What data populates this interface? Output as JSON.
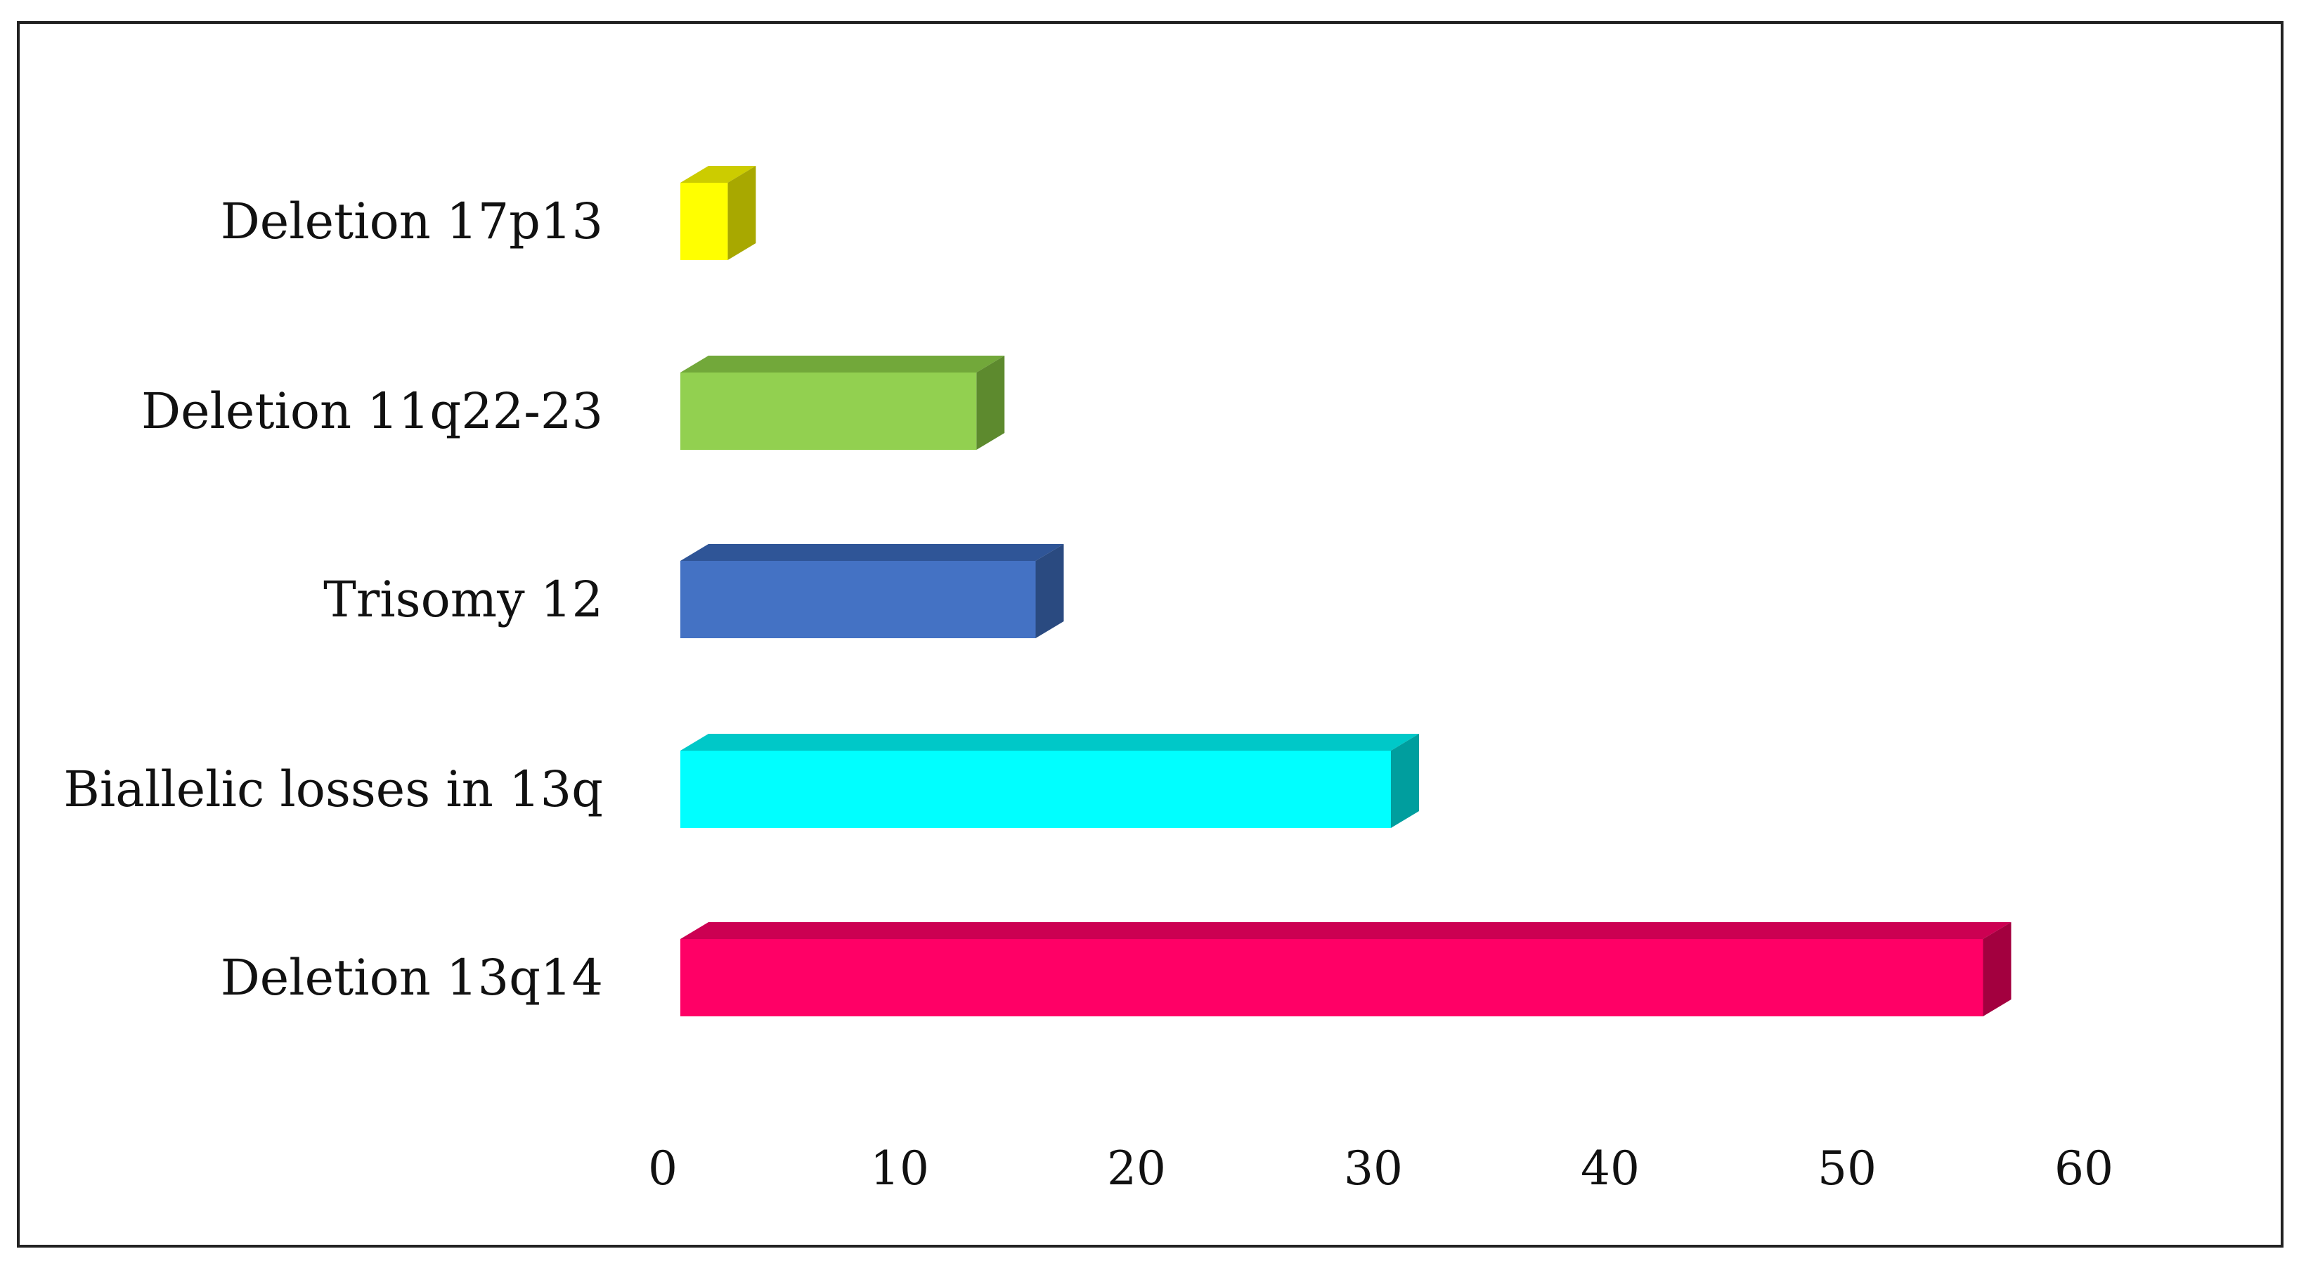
{
  "chart_data": {
    "type": "bar",
    "orientation": "horizontal",
    "style": "3d",
    "title": "",
    "xlabel": "",
    "ylabel": "",
    "xlim": [
      0,
      60
    ],
    "xticks": [
      0,
      10,
      20,
      30,
      40,
      50,
      60
    ],
    "grid": false,
    "legend": "none",
    "categories": [
      "Deletion 13q14",
      "Biallelic losses in 13q",
      "Trisomy 12",
      "Deletion 11q22-23",
      "Deletion 17p13"
    ],
    "values": [
      55,
      30,
      15,
      12.5,
      2
    ],
    "colors": [
      {
        "front": "#ff0066",
        "top": "#cc0052",
        "side": "#a3003f"
      },
      {
        "front": "#00ffff",
        "top": "#00c8c8",
        "side": "#009e9e"
      },
      {
        "front": "#4472c4",
        "top": "#2f5597",
        "side": "#2a4a80"
      },
      {
        "front": "#92d050",
        "top": "#72a83a",
        "side": "#5d8a2e"
      },
      {
        "front": "#ffff00",
        "top": "#cccc00",
        "side": "#a8a800"
      }
    ]
  }
}
